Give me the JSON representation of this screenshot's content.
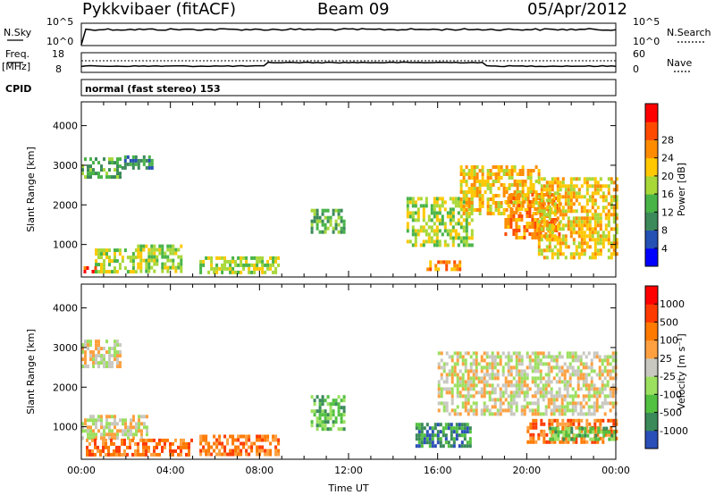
{
  "header": {
    "station": "Pykkvibaer (fitACF)",
    "beam": "Beam 09",
    "date": "05/Apr/2012"
  },
  "strips": {
    "nsky_label": "N.Sky",
    "nsky_ticks": [
      "10^5",
      "10^0"
    ],
    "nsearch_label": "N.Search",
    "nsearch_ticks": [
      "10^5",
      "10^0"
    ],
    "freq_label": "Freq.",
    "freq_unit": "[MHz]",
    "freq_ticks": [
      "18",
      "8"
    ],
    "nave_label": "Nave",
    "nave_ticks": [
      "60",
      "0"
    ],
    "cpid_label": "CPID",
    "cpid_text": "normal (fast stereo) 153"
  },
  "chart_data": [
    {
      "type": "heatmap",
      "name": "power",
      "ylabel": "Slant Range [km]",
      "ylim": [
        180,
        4600
      ],
      "yticks": [
        "1000",
        "2000",
        "3000",
        "4000"
      ],
      "xlim": [
        "00:00",
        "24:00"
      ],
      "colorbar": {
        "label": "Power [dB]",
        "ticks": [
          "4",
          "8",
          "12",
          "16",
          "20",
          "24",
          "28"
        ],
        "colors": [
          "#0000ff",
          "#2550b4",
          "#3c8a5a",
          "#48b448",
          "#a8d838",
          "#ffc800",
          "#ff8c00",
          "#ff4a00",
          "#ff0000"
        ]
      },
      "regions": [
        {
          "t": [
            0.0,
            1.8
          ],
          "r": [
            2700,
            3200
          ],
          "level": 3
        },
        {
          "t": [
            1.8,
            3.2
          ],
          "r": [
            2900,
            3250
          ],
          "level": 2
        },
        {
          "t": [
            0.1,
            0.6
          ],
          "r": [
            300,
            450
          ],
          "level": 7
        },
        {
          "t": [
            0.6,
            2.5
          ],
          "r": [
            300,
            900
          ],
          "level": 4
        },
        {
          "t": [
            2.5,
            4.5
          ],
          "r": [
            300,
            1000
          ],
          "level": 4
        },
        {
          "t": [
            5.3,
            8.8
          ],
          "r": [
            300,
            700
          ],
          "level": 4
        },
        {
          "t": [
            10.3,
            11.8
          ],
          "r": [
            1300,
            1900
          ],
          "level": 3
        },
        {
          "t": [
            14.6,
            17.5
          ],
          "r": [
            1000,
            2200
          ],
          "level": 4
        },
        {
          "t": [
            15.5,
            17.0
          ],
          "r": [
            400,
            600
          ],
          "level": 6
        },
        {
          "t": [
            17.0,
            20.5
          ],
          "r": [
            1800,
            3000
          ],
          "level": 5
        },
        {
          "t": [
            19.0,
            21.5
          ],
          "r": [
            1200,
            2300
          ],
          "level": 6
        },
        {
          "t": [
            20.5,
            24.0
          ],
          "r": [
            700,
            2700
          ],
          "level": 5
        }
      ]
    },
    {
      "type": "heatmap",
      "name": "velocity",
      "ylabel": "Slant Range [km]",
      "ylim": [
        180,
        4600
      ],
      "yticks": [
        "1000",
        "2000",
        "3000",
        "4000"
      ],
      "xlabel": "Time UT",
      "xticks": [
        "00:00",
        "04:00",
        "08:00",
        "12:00",
        "16:00",
        "20:00",
        "00:00"
      ],
      "colorbar": {
        "label": "Velocity [m s⁻¹]",
        "ticks": [
          "1000",
          "500",
          "100",
          "25",
          "-25",
          "-100",
          "-500",
          "-1000"
        ],
        "colors": [
          "#2b4fb8",
          "#3a8a5a",
          "#52c040",
          "#9ce060",
          "#c8c8c0",
          "#ffa040",
          "#ff7a00",
          "#ff3a00",
          "#ff0000"
        ]
      },
      "regions": [
        {
          "t": [
            0.0,
            1.8
          ],
          "r": [
            2500,
            3200
          ],
          "level": 4
        },
        {
          "t": [
            0.0,
            3.0
          ],
          "r": [
            700,
            1300
          ],
          "level": 4
        },
        {
          "t": [
            0.2,
            5.0
          ],
          "r": [
            300,
            700
          ],
          "level": 6
        },
        {
          "t": [
            5.3,
            8.8
          ],
          "r": [
            300,
            800
          ],
          "level": 6
        },
        {
          "t": [
            10.3,
            11.8
          ],
          "r": [
            900,
            1800
          ],
          "level": 2
        },
        {
          "t": [
            15.0,
            17.5
          ],
          "r": [
            500,
            1100
          ],
          "level": 1
        },
        {
          "t": [
            16.0,
            24.0
          ],
          "r": [
            1300,
            2900
          ],
          "level": 4
        },
        {
          "t": [
            20.0,
            24.0
          ],
          "r": [
            600,
            1200
          ],
          "level": 6
        },
        {
          "t": [
            21.0,
            24.0
          ],
          "r": [
            700,
            1000
          ],
          "level": 2
        }
      ]
    }
  ]
}
